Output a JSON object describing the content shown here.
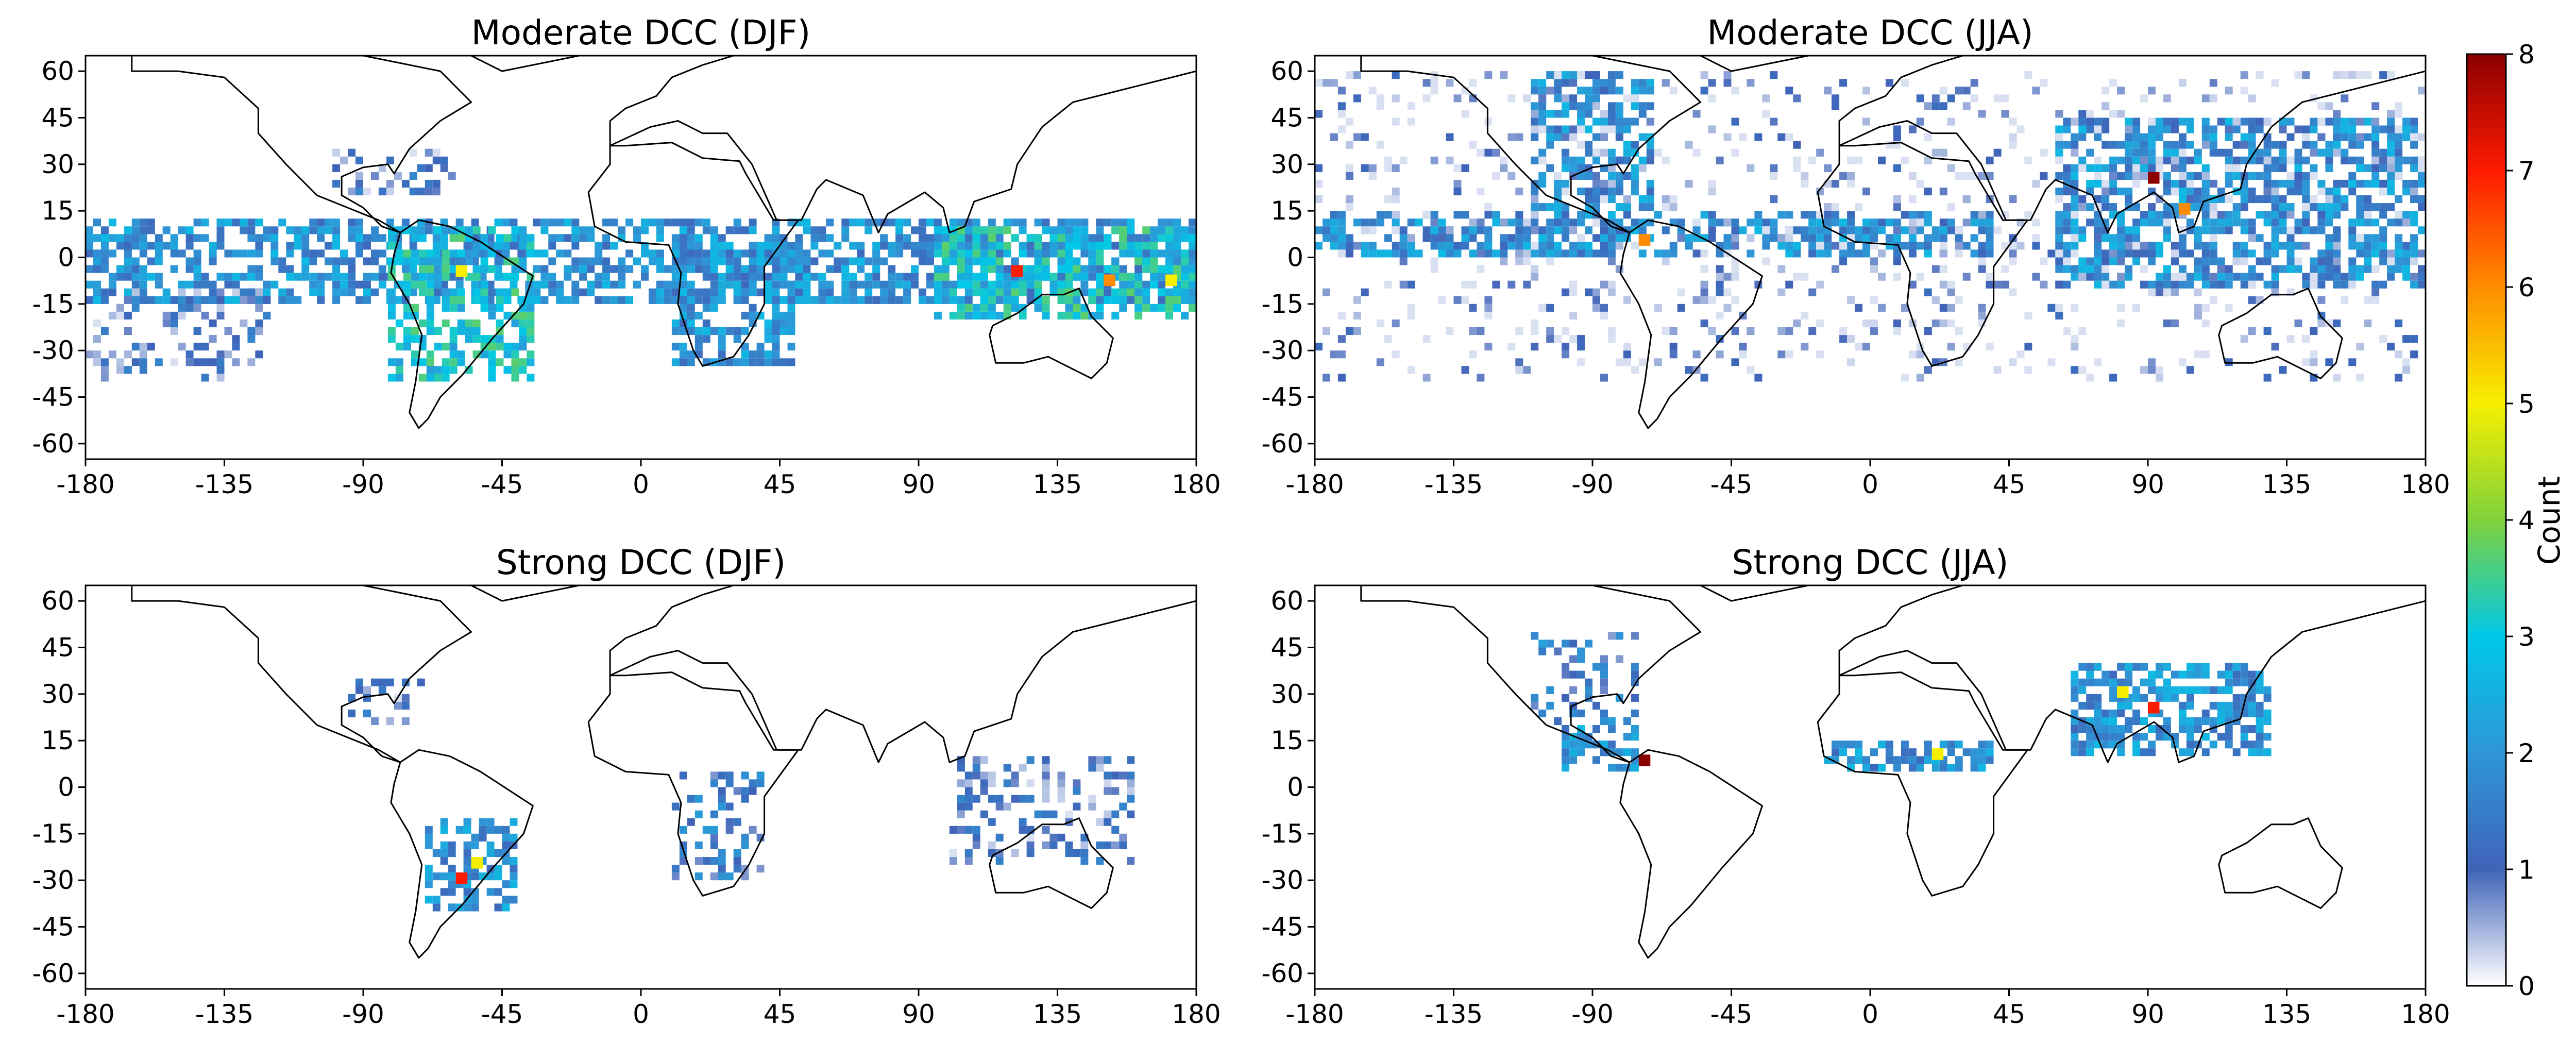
{
  "chart_data": [
    {
      "type": "heatmap",
      "title": "Moderate DCC (DJF)",
      "xlim": [
        -180,
        180
      ],
      "ylim": [
        -65,
        65
      ],
      "xticks": [
        "-180",
        "-135",
        "-90",
        "-45",
        "0",
        "45",
        "90",
        "135",
        "180"
      ],
      "yticks": [
        "60",
        "45",
        "30",
        "15",
        "0",
        "-15",
        "-30",
        "-45",
        "-60"
      ],
      "grid": false,
      "basemap": "world coastlines and country borders",
      "density_regions": [
        {
          "lon": [
            -180,
            180
          ],
          "lat": [
            -15,
            12
          ],
          "level": 2
        },
        {
          "lon": [
            -82,
            -35
          ],
          "lat": [
            -40,
            10
          ],
          "level": 3
        },
        {
          "lon": [
            10,
            50
          ],
          "lat": [
            -35,
            5
          ],
          "level": 2
        },
        {
          "lon": [
            95,
            180
          ],
          "lat": [
            -20,
            10
          ],
          "level": 3
        },
        {
          "lon": [
            -180,
            -120
          ],
          "lat": [
            -40,
            -10
          ],
          "level": 1
        },
        {
          "lon": [
            -100,
            -60
          ],
          "lat": [
            20,
            35
          ],
          "level": 1
        }
      ],
      "hotspots": [
        {
          "lon": -60,
          "lat": -5,
          "value": 5
        },
        {
          "lon": 120,
          "lat": -5,
          "value": 7
        },
        {
          "lon": 150,
          "lat": -8,
          "value": 6
        },
        {
          "lon": 170,
          "lat": -8,
          "value": 5
        }
      ]
    },
    {
      "type": "heatmap",
      "title": "Moderate DCC (JJA)",
      "xlim": [
        -180,
        180
      ],
      "ylim": [
        -65,
        65
      ],
      "xticks": [
        "-180",
        "-135",
        "-90",
        "-45",
        "0",
        "45",
        "90",
        "135",
        "180"
      ],
      "yticks": [
        "60",
        "45",
        "30",
        "15",
        "0",
        "-15",
        "-30",
        "-45",
        "-60"
      ],
      "grid": false,
      "basemap": "world coastlines and country borders",
      "density_regions": [
        {
          "lon": [
            -180,
            40
          ],
          "lat": [
            0,
            15
          ],
          "level": 2
        },
        {
          "lon": [
            -110,
            -70
          ],
          "lat": [
            15,
            60
          ],
          "level": 2
        },
        {
          "lon": [
            60,
            180
          ],
          "lat": [
            -10,
            45
          ],
          "level": 2
        },
        {
          "lon": [
            -180,
            180
          ],
          "lat": [
            -40,
            60
          ],
          "level": 0.5
        }
      ],
      "hotspots": [
        {
          "lon": -75,
          "lat": 5,
          "value": 6
        },
        {
          "lon": 90,
          "lat": 25,
          "value": 8
        },
        {
          "lon": 100,
          "lat": 15,
          "value": 6
        }
      ]
    },
    {
      "type": "heatmap",
      "title": "Strong DCC (DJF)",
      "xlim": [
        -180,
        180
      ],
      "ylim": [
        -65,
        65
      ],
      "xticks": [
        "-180",
        "-135",
        "-90",
        "-45",
        "0",
        "45",
        "90",
        "135",
        "180"
      ],
      "yticks": [
        "60",
        "45",
        "30",
        "15",
        "0",
        "-15",
        "-30",
        "-45",
        "-60"
      ],
      "grid": false,
      "basemap": "world coastlines and country borders",
      "density_regions": [
        {
          "lon": [
            -70,
            -40
          ],
          "lat": [
            -40,
            -10
          ],
          "level": 2
        },
        {
          "lon": [
            10,
            40
          ],
          "lat": [
            -30,
            5
          ],
          "level": 1.5
        },
        {
          "lon": [
            100,
            160
          ],
          "lat": [
            -25,
            10
          ],
          "level": 1
        },
        {
          "lon": [
            -95,
            -70
          ],
          "lat": [
            20,
            35
          ],
          "level": 1
        }
      ],
      "hotspots": [
        {
          "lon": -60,
          "lat": -30,
          "value": 7
        },
        {
          "lon": -55,
          "lat": -25,
          "value": 5
        }
      ]
    },
    {
      "type": "heatmap",
      "title": "Strong DCC (JJA)",
      "xlim": [
        -180,
        180
      ],
      "ylim": [
        -65,
        65
      ],
      "xticks": [
        "-180",
        "-135",
        "-90",
        "-45",
        "0",
        "45",
        "90",
        "135",
        "180"
      ],
      "yticks": [
        "60",
        "45",
        "30",
        "15",
        "0",
        "-15",
        "-30",
        "-45",
        "-60"
      ],
      "grid": false,
      "basemap": "world coastlines and country borders",
      "density_regions": [
        {
          "lon": [
            -110,
            -75
          ],
          "lat": [
            20,
            50
          ],
          "level": 1.5
        },
        {
          "lon": [
            -100,
            -75
          ],
          "lat": [
            5,
            20
          ],
          "level": 2
        },
        {
          "lon": [
            -15,
            40
          ],
          "lat": [
            5,
            15
          ],
          "level": 2
        },
        {
          "lon": [
            65,
            130
          ],
          "lat": [
            10,
            40
          ],
          "level": 2
        }
      ],
      "hotspots": [
        {
          "lon": -75,
          "lat": 8,
          "value": 8
        },
        {
          "lon": 90,
          "lat": 25,
          "value": 7
        },
        {
          "lon": 80,
          "lat": 30,
          "value": 5
        },
        {
          "lon": 20,
          "lat": 10,
          "value": 5
        }
      ]
    }
  ],
  "colorbar": {
    "label": "Count",
    "min": 0,
    "max": 8,
    "ticks": [
      "0",
      "1",
      "2",
      "3",
      "4",
      "5",
      "6",
      "7",
      "8"
    ],
    "colors": [
      "#ffffff",
      "#3f63b8",
      "#2e96d6",
      "#00c8e8",
      "#7fd23a",
      "#f7ef00",
      "#ff8c00",
      "#ff1a00",
      "#8b0000"
    ]
  }
}
